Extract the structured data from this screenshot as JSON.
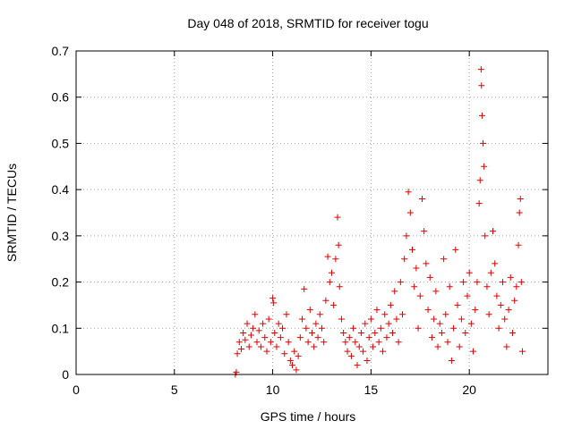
{
  "chart_data": {
    "type": "scatter",
    "title": "Day 048 of 2018, SRMTID for receiver togu",
    "xlabel": "GPS time / hours",
    "ylabel": "SRMTID / TECUs",
    "xlim": [
      0,
      24
    ],
    "ylim": [
      0,
      0.7
    ],
    "xticks": [
      0,
      5,
      10,
      15,
      20
    ],
    "yticks": [
      0,
      0.1,
      0.2,
      0.3,
      0.4,
      0.5,
      0.6,
      0.7
    ],
    "xtick_labels": [
      "0",
      "5",
      "10",
      "15",
      "20"
    ],
    "ytick_labels": [
      "0",
      "0.1",
      "0.2",
      "0.3",
      "0.4",
      "0.5",
      "0.6",
      "0.7"
    ],
    "grid": true,
    "marker": "+",
    "colors": {
      "points": "#e00000",
      "grid": "#a0a0a0",
      "axes": "#000000"
    },
    "series": [
      {
        "name": "SRMTID",
        "points": [
          [
            8.1,
            0.0
          ],
          [
            8.15,
            0.005
          ],
          [
            8.2,
            0.045
          ],
          [
            8.3,
            0.07
          ],
          [
            8.4,
            0.055
          ],
          [
            8.5,
            0.09
          ],
          [
            8.6,
            0.075
          ],
          [
            8.7,
            0.11
          ],
          [
            8.8,
            0.06
          ],
          [
            8.9,
            0.085
          ],
          [
            9.0,
            0.1
          ],
          [
            9.1,
            0.13
          ],
          [
            9.2,
            0.07
          ],
          [
            9.3,
            0.095
          ],
          [
            9.4,
            0.06
          ],
          [
            9.5,
            0.11
          ],
          [
            9.6,
            0.08
          ],
          [
            9.7,
            0.05
          ],
          [
            9.8,
            0.12
          ],
          [
            9.9,
            0.07
          ],
          [
            10.0,
            0.165
          ],
          [
            10.05,
            0.155
          ],
          [
            10.1,
            0.09
          ],
          [
            10.2,
            0.06
          ],
          [
            10.3,
            0.11
          ],
          [
            10.4,
            0.08
          ],
          [
            10.5,
            0.1
          ],
          [
            10.6,
            0.045
          ],
          [
            10.7,
            0.13
          ],
          [
            10.8,
            0.07
          ],
          [
            10.9,
            0.03
          ],
          [
            11.0,
            0.02
          ],
          [
            11.1,
            0.05
          ],
          [
            11.2,
            0.01
          ],
          [
            11.3,
            0.04
          ],
          [
            11.4,
            0.08
          ],
          [
            11.5,
            0.12
          ],
          [
            11.6,
            0.185
          ],
          [
            11.7,
            0.1
          ],
          [
            11.8,
            0.07
          ],
          [
            11.9,
            0.14
          ],
          [
            12.0,
            0.09
          ],
          [
            12.1,
            0.06
          ],
          [
            12.2,
            0.11
          ],
          [
            12.3,
            0.08
          ],
          [
            12.4,
            0.13
          ],
          [
            12.5,
            0.1
          ],
          [
            12.6,
            0.07
          ],
          [
            12.7,
            0.16
          ],
          [
            12.8,
            0.255
          ],
          [
            12.9,
            0.2
          ],
          [
            13.0,
            0.22
          ],
          [
            13.1,
            0.15
          ],
          [
            13.2,
            0.25
          ],
          [
            13.3,
            0.34
          ],
          [
            13.35,
            0.28
          ],
          [
            13.4,
            0.19
          ],
          [
            13.5,
            0.12
          ],
          [
            13.6,
            0.09
          ],
          [
            13.7,
            0.07
          ],
          [
            13.8,
            0.05
          ],
          [
            13.9,
            0.08
          ],
          [
            14.0,
            0.04
          ],
          [
            14.1,
            0.1
          ],
          [
            14.2,
            0.07
          ],
          [
            14.3,
            0.02
          ],
          [
            14.4,
            0.06
          ],
          [
            14.5,
            0.09
          ],
          [
            14.6,
            0.05
          ],
          [
            14.7,
            0.11
          ],
          [
            14.8,
            0.03
          ],
          [
            14.9,
            0.08
          ],
          [
            15.0,
            0.12
          ],
          [
            15.1,
            0.06
          ],
          [
            15.2,
            0.09
          ],
          [
            15.3,
            0.14
          ],
          [
            15.4,
            0.07
          ],
          [
            15.5,
            0.1
          ],
          [
            15.6,
            0.05
          ],
          [
            15.7,
            0.13
          ],
          [
            15.8,
            0.08
          ],
          [
            15.9,
            0.11
          ],
          [
            16.0,
            0.15
          ],
          [
            16.1,
            0.09
          ],
          [
            16.2,
            0.18
          ],
          [
            16.3,
            0.12
          ],
          [
            16.4,
            0.07
          ],
          [
            16.5,
            0.2
          ],
          [
            16.6,
            0.13
          ],
          [
            16.7,
            0.25
          ],
          [
            16.8,
            0.3
          ],
          [
            16.9,
            0.395
          ],
          [
            17.0,
            0.35
          ],
          [
            17.1,
            0.27
          ],
          [
            17.2,
            0.19
          ],
          [
            17.3,
            0.23
          ],
          [
            17.4,
            0.1
          ],
          [
            17.5,
            0.17
          ],
          [
            17.6,
            0.38
          ],
          [
            17.7,
            0.31
          ],
          [
            17.8,
            0.24
          ],
          [
            17.9,
            0.14
          ],
          [
            18.0,
            0.21
          ],
          [
            18.1,
            0.08
          ],
          [
            18.2,
            0.12
          ],
          [
            18.3,
            0.18
          ],
          [
            18.4,
            0.06
          ],
          [
            18.5,
            0.11
          ],
          [
            18.6,
            0.09
          ],
          [
            18.7,
            0.25
          ],
          [
            18.8,
            0.13
          ],
          [
            18.9,
            0.07
          ],
          [
            19.0,
            0.19
          ],
          [
            19.1,
            0.03
          ],
          [
            19.2,
            0.1
          ],
          [
            19.3,
            0.27
          ],
          [
            19.4,
            0.15
          ],
          [
            19.5,
            0.06
          ],
          [
            19.6,
            0.12
          ],
          [
            19.7,
            0.2
          ],
          [
            19.8,
            0.09
          ],
          [
            19.9,
            0.17
          ],
          [
            20.0,
            0.22
          ],
          [
            20.1,
            0.11
          ],
          [
            20.2,
            0.05
          ],
          [
            20.3,
            0.14
          ],
          [
            20.4,
            0.2
          ],
          [
            20.5,
            0.37
          ],
          [
            20.55,
            0.42
          ],
          [
            20.6,
            0.66
          ],
          [
            20.62,
            0.625
          ],
          [
            20.65,
            0.56
          ],
          [
            20.7,
            0.5
          ],
          [
            20.75,
            0.45
          ],
          [
            20.8,
            0.3
          ],
          [
            20.9,
            0.19
          ],
          [
            21.0,
            0.13
          ],
          [
            21.1,
            0.22
          ],
          [
            21.2,
            0.31
          ],
          [
            21.3,
            0.24
          ],
          [
            21.4,
            0.17
          ],
          [
            21.5,
            0.1
          ],
          [
            21.6,
            0.15
          ],
          [
            21.7,
            0.2
          ],
          [
            21.8,
            0.12
          ],
          [
            21.9,
            0.06
          ],
          [
            22.0,
            0.14
          ],
          [
            22.1,
            0.21
          ],
          [
            22.2,
            0.09
          ],
          [
            22.3,
            0.16
          ],
          [
            22.4,
            0.19
          ],
          [
            22.5,
            0.28
          ],
          [
            22.55,
            0.35
          ],
          [
            22.6,
            0.38
          ],
          [
            22.65,
            0.2
          ],
          [
            22.7,
            0.05
          ]
        ]
      }
    ]
  }
}
